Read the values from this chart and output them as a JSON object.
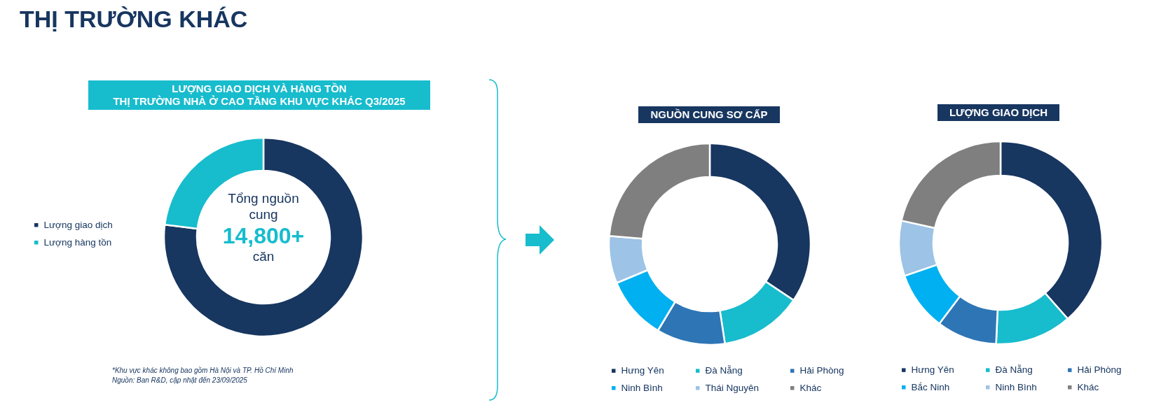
{
  "chart_data": [
    {
      "type": "other",
      "title": "THỊ TRƯỜNG KHÁC"
    },
    {
      "type": "donut",
      "title": "LƯỢNG GIAO DỊCH VÀ HÀNG TỒN\nTHỊ TRƯỜNG NHÀ Ở CAO TẦNG KHU VỰC KHÁC Q3/2025",
      "categories": [
        "Lượng giao dịch",
        "Lượng hàng tồn"
      ],
      "values": [
        77,
        23
      ],
      "colors": [
        "#173660",
        "#17bccd"
      ],
      "legend": "left",
      "annotations": [
        "Tổng nguồn cung",
        "14,800+",
        "căn",
        "*Khu vực khác không bao gồm Hà Nội và TP. Hồ Chí Minh",
        "Nguồn: Ban R&D, cập nhật đến 23/09/2025"
      ]
    },
    {
      "type": "donut",
      "title": "NGUỒN CUNG SƠ CẤP",
      "categories": [
        "Hưng Yên",
        "Đà Nẵng",
        "Hải Phòng",
        "Ninh Bình",
        "Thái Nguyên",
        "Khác"
      ],
      "values": [
        34.4,
        13.2,
        11.0,
        10.1,
        7.6,
        23.7
      ],
      "colors": [
        "#173660",
        "#17bccd",
        "#2e75b6",
        "#00b0f0",
        "#9dc3e6",
        "#7f7f7f"
      ],
      "legend": "bottom"
    },
    {
      "type": "donut",
      "title": "LƯỢNG GIAO DỊCH",
      "categories": [
        "Hưng Yên",
        "Đà Nẵng",
        "Hải Phòng",
        "Bắc Ninh",
        "Ninh Bình",
        "Khác"
      ],
      "values": [
        38.5,
        12.2,
        9.6,
        9.4,
        8.8,
        21.5
      ],
      "colors": [
        "#173660",
        "#17bccd",
        "#2e75b6",
        "#00b0f0",
        "#9dc3e6",
        "#7f7f7f"
      ],
      "legend": "bottom"
    }
  ]
}
